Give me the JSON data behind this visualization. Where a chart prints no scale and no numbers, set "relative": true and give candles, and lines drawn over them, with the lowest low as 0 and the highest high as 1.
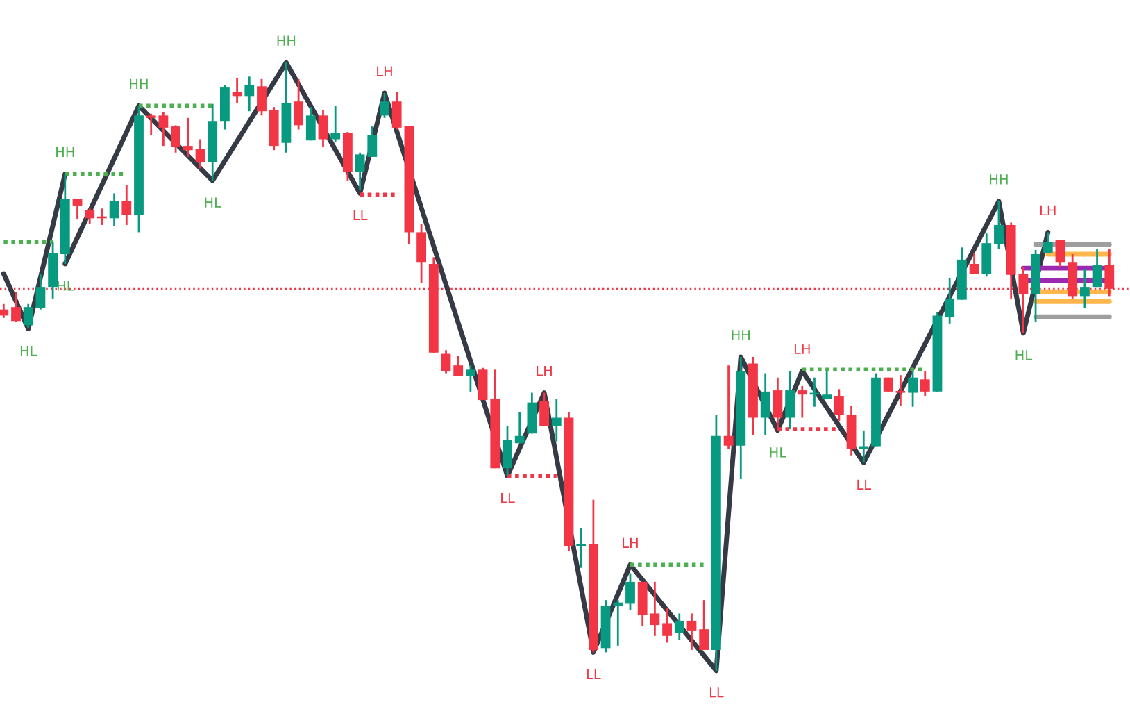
{
  "chart_data": {
    "type": "candlestick",
    "relative": true,
    "categories": [
      null,
      null,
      null,
      null,
      null,
      null,
      null,
      null,
      null,
      null,
      null,
      null,
      null,
      null,
      null,
      null,
      null,
      null,
      null,
      null,
      null,
      null,
      null,
      null,
      null,
      null,
      null,
      null,
      null,
      null,
      null,
      null,
      null,
      null,
      null,
      null,
      null,
      null,
      null,
      null,
      null,
      null,
      null,
      null,
      null,
      null,
      null,
      null,
      null,
      null,
      null,
      null,
      null,
      null,
      null,
      null,
      null,
      null,
      null,
      null,
      null,
      null,
      null,
      null,
      null,
      null,
      null,
      null,
      null,
      null,
      null,
      null,
      null,
      null,
      null,
      null,
      null,
      null,
      null,
      null,
      null,
      null,
      null,
      null,
      null,
      null,
      null,
      null,
      null,
      null,
      null
    ],
    "ohlc": [
      [
        0.594,
        0.603,
        0.58,
        0.584
      ],
      [
        0.598,
        0.623,
        0.573,
        0.575
      ],
      [
        0.568,
        0.603,
        0.564,
        0.598
      ],
      [
        0.596,
        0.653,
        0.594,
        0.63
      ],
      [
        0.63,
        0.705,
        0.612,
        0.687
      ],
      [
        0.685,
        0.817,
        0.669,
        0.776
      ],
      [
        0.776,
        0.776,
        0.742,
        0.765
      ],
      [
        0.758,
        0.76,
        0.735,
        0.744
      ],
      [
        0.747,
        0.76,
        0.733,
        0.744
      ],
      [
        0.744,
        0.785,
        0.731,
        0.772
      ],
      [
        0.772,
        0.799,
        0.733,
        0.749
      ],
      [
        0.749,
        0.929,
        0.721,
        0.913
      ],
      [
        0.913,
        0.916,
        0.881,
        0.909
      ],
      [
        0.913,
        0.918,
        0.863,
        0.893
      ],
      [
        0.895,
        0.897,
        0.852,
        0.861
      ],
      [
        0.863,
        0.909,
        0.845,
        0.856
      ],
      [
        0.858,
        0.874,
        0.826,
        0.836
      ],
      [
        0.836,
        0.932,
        0.806,
        0.904
      ],
      [
        0.904,
        0.963,
        0.89,
        0.959
      ],
      [
        0.952,
        0.975,
        0.934,
        0.945
      ],
      [
        0.945,
        0.977,
        0.92,
        0.963
      ],
      [
        0.961,
        0.973,
        0.913,
        0.92
      ],
      [
        0.922,
        0.927,
        0.856,
        0.863
      ],
      [
        0.868,
        1.0,
        0.852,
        0.934
      ],
      [
        0.936,
        0.973,
        0.89,
        0.897
      ],
      [
        0.872,
        0.927,
        0.872,
        0.913
      ],
      [
        0.913,
        0.922,
        0.861,
        0.874
      ],
      [
        0.874,
        0.929,
        0.87,
        0.884
      ],
      [
        0.884,
        0.886,
        0.806,
        0.82
      ],
      [
        0.82,
        0.852,
        0.79,
        0.849
      ],
      [
        0.845,
        0.895,
        0.845,
        0.881
      ],
      [
        0.913,
        0.95,
        0.909,
        0.936
      ],
      [
        0.936,
        0.952,
        0.89,
        0.893
      ],
      [
        0.895,
        0.895,
        0.701,
        0.721
      ],
      [
        0.721,
        0.735,
        0.637,
        0.671
      ],
      [
        0.669,
        0.68,
        0.523,
        0.523
      ],
      [
        0.521,
        0.527,
        0.489,
        0.493
      ],
      [
        0.502,
        0.518,
        0.484,
        0.484
      ],
      [
        0.484,
        0.502,
        0.459,
        0.495
      ],
      [
        0.495,
        0.498,
        0.445,
        0.445
      ],
      [
        0.447,
        0.495,
        0.333,
        0.333
      ],
      [
        0.333,
        0.402,
        0.32,
        0.379
      ],
      [
        0.374,
        0.425,
        0.374,
        0.386
      ],
      [
        0.39,
        0.457,
        0.39,
        0.441
      ],
      [
        0.443,
        0.457,
        0.402,
        0.402
      ],
      [
        0.402,
        0.447,
        0.377,
        0.416
      ],
      [
        0.416,
        0.425,
        0.196,
        0.205
      ],
      [
        0.205,
        0.235,
        0.169,
        0.208
      ],
      [
        0.208,
        0.281,
        0.03,
        0.034
      ],
      [
        0.037,
        0.116,
        0.03,
        0.107
      ],
      [
        0.107,
        0.116,
        0.041,
        0.112
      ],
      [
        0.11,
        0.16,
        0.1,
        0.146
      ],
      [
        0.146,
        0.146,
        0.073,
        0.091
      ],
      [
        0.094,
        0.146,
        0.057,
        0.075
      ],
      [
        0.078,
        0.103,
        0.046,
        0.057
      ],
      [
        0.062,
        0.094,
        0.05,
        0.082
      ],
      [
        0.082,
        0.094,
        0.034,
        0.066
      ],
      [
        0.068,
        0.116,
        0.034,
        0.034
      ],
      [
        0.034,
        0.42,
        0.0,
        0.386
      ],
      [
        0.386,
        0.502,
        0.365,
        0.37
      ],
      [
        0.37,
        0.516,
        0.315,
        0.493
      ],
      [
        0.505,
        0.516,
        0.388,
        0.416
      ],
      [
        0.416,
        0.489,
        0.388,
        0.459
      ],
      [
        0.461,
        0.482,
        0.395,
        0.416
      ],
      [
        0.416,
        0.493,
        0.397,
        0.461
      ],
      [
        0.461,
        0.468,
        0.416,
        0.454
      ],
      [
        0.454,
        0.482,
        0.434,
        0.457
      ],
      [
        0.447,
        0.493,
        0.447,
        0.454
      ],
      [
        0.452,
        0.463,
        0.411,
        0.42
      ],
      [
        0.42,
        0.436,
        0.354,
        0.365
      ],
      [
        0.365,
        0.395,
        0.342,
        0.368
      ],
      [
        0.368,
        0.489,
        0.368,
        0.482
      ],
      [
        0.482,
        0.482,
        0.459,
        0.459
      ],
      [
        0.459,
        0.486,
        0.436,
        0.457
      ],
      [
        0.457,
        0.493,
        0.434,
        0.482
      ],
      [
        0.479,
        0.493,
        0.452,
        0.459
      ],
      [
        0.459,
        0.589,
        0.459,
        0.584
      ],
      [
        0.582,
        0.646,
        0.571,
        0.612
      ],
      [
        0.61,
        0.696,
        0.61,
        0.676
      ],
      [
        0.669,
        0.687,
        0.653,
        0.653
      ],
      [
        0.653,
        0.719,
        0.648,
        0.703
      ],
      [
        0.701,
        0.772,
        0.694,
        0.733
      ],
      [
        0.733,
        0.737,
        0.612,
        0.651
      ],
      [
        0.653,
        0.664,
        0.555,
        0.619
      ],
      [
        0.619,
        0.692,
        0.573,
        0.685
      ],
      [
        0.687,
        0.721,
        0.687,
        0.705
      ],
      [
        0.708,
        0.708,
        0.664,
        0.671
      ],
      [
        0.671,
        0.685,
        0.612,
        0.616
      ],
      [
        0.616,
        0.66,
        0.596,
        0.63
      ],
      [
        0.63,
        0.694,
        0.63,
        0.667
      ],
      [
        0.667,
        0.694,
        0.616,
        0.628
      ]
    ],
    "colors": [
      "#f23645",
      "#f23645",
      "#089981",
      "#089981",
      "#089981",
      "#089981",
      "#f23645",
      "#f23645",
      "#f23645",
      "#089981",
      "#f23645",
      "#089981",
      "#f23645",
      "#f23645",
      "#f23645",
      "#f23645",
      "#f23645",
      "#089981",
      "#089981",
      "#f23645",
      "#089981",
      "#f23645",
      "#f23645",
      "#089981",
      "#f23645",
      "#089981",
      "#f23645",
      "#089981",
      "#f23645",
      "#089981",
      "#089981",
      "#089981",
      "#f23645",
      "#f23645",
      "#f23645",
      "#f23645",
      "#f23645",
      "#f23645",
      "#089981",
      "#f23645",
      "#f23645",
      "#089981",
      "#089981",
      "#089981",
      "#f23645",
      "#089981",
      "#f23645",
      "#089981",
      "#f23645",
      "#089981",
      "#089981",
      "#089981",
      "#f23645",
      "#f23645",
      "#f23645",
      "#089981",
      "#f23645",
      "#f23645",
      "#089981",
      "#f23645",
      "#089981",
      "#f23645",
      "#089981",
      "#f23645",
      "#089981",
      "#f23645",
      "#089981",
      "#089981",
      "#f23645",
      "#f23645",
      "#089981",
      "#089981",
      "#f23645",
      "#f23645",
      "#089981",
      "#f23645",
      "#089981",
      "#089981",
      "#089981",
      "#f23645",
      "#089981",
      "#089981",
      "#f23645",
      "#f23645",
      "#089981",
      "#089981",
      "#f23645",
      "#f23645",
      "#089981",
      "#089981",
      "#f23645"
    ],
    "series": [
      {
        "type": "line",
        "color": "#363a45",
        "line_style": "solid",
        "values": [
          0.653,
          null,
          0.562,
          null,
          null,
          0.817,
          null,
          null,
          null,
          null,
          null,
          null,
          null,
          null,
          null,
          null,
          null,
          null,
          null,
          null,
          null,
          null,
          null,
          null,
          null,
          null,
          null,
          null,
          null,
          null,
          null,
          null,
          null,
          null,
          null,
          null,
          null,
          null,
          null,
          null,
          null,
          null,
          null,
          null,
          null,
          null,
          null,
          null,
          null,
          null,
          null,
          null,
          null,
          null,
          null,
          null,
          null,
          null,
          null,
          null,
          null,
          null,
          null,
          null,
          null,
          null,
          null,
          null,
          null,
          null,
          null,
          null,
          null,
          null,
          null,
          null,
          null,
          null,
          null,
          null,
          null,
          null,
          null,
          null,
          null,
          null,
          null,
          null,
          null,
          null,
          null
        ]
      },
      {
        "type": "line",
        "color": "#363a45",
        "line_style": "solid",
        "values": [
          null,
          null,
          null,
          null,
          null,
          0.669,
          null,
          null,
          null,
          null,
          null,
          0.929,
          null,
          null,
          null,
          null,
          null,
          0.806,
          null,
          null,
          null,
          null,
          null,
          1.0,
          null,
          null,
          null,
          null,
          null,
          0.785,
          null,
          0.95,
          null,
          null,
          null,
          null,
          null,
          null,
          null,
          null,
          null,
          0.32,
          null,
          null,
          0.457,
          null,
          null,
          null,
          0.03,
          null,
          null,
          0.174,
          null,
          null,
          null,
          null,
          null,
          null,
          0.0,
          null,
          0.516,
          null,
          null,
          0.395,
          null,
          0.493,
          null,
          null,
          null,
          null,
          0.342,
          null,
          null,
          null,
          null,
          null,
          null,
          null,
          null,
          null,
          null,
          0.772,
          null,
          0.555,
          null,
          0.721,
          null,
          null,
          null,
          null,
          null
        ]
      },
      {
        "type": "line",
        "color": "#4caf50",
        "line_style": "dotted",
        "values": [
          0.705,
          0.705,
          0.705,
          0.705,
          0.705,
          null,
          null,
          null,
          null,
          null,
          null,
          null,
          null,
          null,
          null,
          null,
          null,
          null,
          null,
          null,
          null,
          null,
          null,
          null,
          null,
          null,
          null,
          null,
          null,
          null,
          null,
          null,
          null,
          null,
          null,
          null,
          null,
          null,
          null,
          null,
          null,
          null,
          null,
          null,
          null,
          null,
          null,
          null,
          null,
          null,
          null,
          null,
          null,
          null,
          null,
          null,
          null,
          null,
          null,
          null,
          null,
          null,
          null,
          null,
          null,
          null,
          null,
          null,
          null,
          null,
          null,
          null,
          null,
          null,
          null,
          null,
          null,
          null,
          null,
          null,
          null,
          null,
          null,
          null,
          null,
          null,
          null,
          null,
          null,
          null,
          null
        ]
      },
      {
        "type": "line",
        "color": "#4caf50",
        "line_style": "dotted",
        "values": [
          null,
          null,
          null,
          null,
          null,
          0.817,
          0.817,
          0.817,
          0.817,
          0.817,
          0.817,
          null,
          null,
          null,
          null,
          null,
          null,
          null,
          null,
          null,
          null,
          null,
          null,
          null,
          null,
          null,
          null,
          null,
          null,
          null,
          null,
          null,
          null,
          null,
          null,
          null,
          null,
          null,
          null,
          null,
          null,
          null,
          null,
          null,
          null,
          null,
          null,
          null,
          null,
          null,
          null,
          null,
          null,
          null,
          null,
          null,
          null,
          null,
          null,
          null,
          null,
          null,
          null,
          null,
          null,
          null,
          null,
          null,
          null,
          null,
          null,
          null,
          null,
          null,
          null,
          null,
          null,
          null,
          null,
          null,
          null,
          null,
          null,
          null,
          null,
          null,
          null,
          null,
          null,
          null,
          null
        ]
      },
      {
        "type": "line",
        "color": "#4caf50",
        "line_style": "dotted",
        "values": [
          null,
          null,
          null,
          null,
          null,
          null,
          null,
          null,
          null,
          null,
          null,
          0.929,
          0.929,
          0.929,
          0.929,
          0.929,
          0.929,
          0.929,
          null,
          null,
          null,
          null,
          null,
          null,
          null,
          null,
          null,
          null,
          null,
          null,
          null,
          null,
          null,
          null,
          null,
          null,
          null,
          null,
          null,
          null,
          null,
          null,
          null,
          null,
          null,
          null,
          null,
          null,
          null,
          null,
          null,
          null,
          null,
          null,
          null,
          null,
          null,
          null,
          null,
          null,
          null,
          null,
          null,
          null,
          null,
          null,
          null,
          null,
          null,
          null,
          null,
          null,
          null,
          null,
          null,
          null,
          null,
          null,
          null,
          null,
          null,
          null,
          null,
          null,
          null,
          null,
          null,
          null,
          null,
          null,
          null
        ]
      },
      {
        "type": "line",
        "color": "#f23645",
        "line_style": "dotted",
        "values": [
          null,
          null,
          null,
          null,
          null,
          null,
          null,
          null,
          null,
          null,
          null,
          null,
          null,
          null,
          null,
          null,
          null,
          null,
          null,
          null,
          null,
          null,
          null,
          null,
          null,
          null,
          null,
          null,
          null,
          0.783,
          0.783,
          0.783,
          0.783,
          null,
          null,
          null,
          null,
          null,
          null,
          null,
          null,
          null,
          null,
          null,
          null,
          null,
          null,
          null,
          null,
          null,
          null,
          null,
          null,
          null,
          null,
          null,
          null,
          null,
          null,
          null,
          null,
          null,
          null,
          null,
          null,
          null,
          null,
          null,
          null,
          null,
          null,
          null,
          null,
          null,
          null,
          null,
          null,
          null,
          null,
          null,
          null,
          null,
          null,
          null,
          null,
          null,
          null,
          null,
          null,
          null,
          null
        ]
      },
      {
        "type": "line",
        "color": "#f23645",
        "line_style": "dotted",
        "values": [
          null,
          null,
          null,
          null,
          null,
          null,
          null,
          null,
          null,
          null,
          null,
          null,
          null,
          null,
          null,
          null,
          null,
          null,
          null,
          null,
          null,
          null,
          null,
          null,
          null,
          null,
          null,
          null,
          null,
          null,
          null,
          null,
          null,
          null,
          null,
          null,
          null,
          null,
          null,
          null,
          null,
          0.32,
          0.32,
          0.32,
          0.32,
          0.32,
          null,
          null,
          null,
          null,
          null,
          null,
          null,
          null,
          null,
          null,
          null,
          null,
          null,
          null,
          null,
          null,
          null,
          null,
          null,
          null,
          null,
          null,
          null,
          null,
          null,
          null,
          null,
          null,
          null,
          null,
          null,
          null,
          null,
          null,
          null,
          null,
          null,
          null,
          null,
          null,
          null,
          null,
          null,
          null,
          null
        ]
      },
      {
        "type": "line",
        "color": "#4caf50",
        "line_style": "dotted",
        "values": [
          null,
          null,
          null,
          null,
          null,
          null,
          null,
          null,
          null,
          null,
          null,
          null,
          null,
          null,
          null,
          null,
          null,
          null,
          null,
          null,
          null,
          null,
          null,
          null,
          null,
          null,
          null,
          null,
          null,
          null,
          null,
          null,
          null,
          null,
          null,
          null,
          null,
          null,
          null,
          null,
          null,
          null,
          null,
          null,
          null,
          null,
          null,
          null,
          null,
          null,
          null,
          0.174,
          0.174,
          0.174,
          0.174,
          0.174,
          0.174,
          0.174,
          null,
          null,
          null,
          null,
          null,
          null,
          null,
          null,
          null,
          null,
          null,
          null,
          null,
          null,
          null,
          null,
          null,
          null,
          null,
          null,
          null,
          null,
          null,
          null,
          null,
          null,
          null,
          null,
          null,
          null,
          null,
          null,
          null
        ]
      },
      {
        "type": "line",
        "color": "#f23645",
        "line_style": "dotted",
        "values": [
          null,
          null,
          null,
          null,
          null,
          null,
          null,
          null,
          null,
          null,
          null,
          null,
          null,
          null,
          null,
          null,
          null,
          null,
          null,
          null,
          null,
          null,
          null,
          null,
          null,
          null,
          null,
          null,
          null,
          null,
          null,
          null,
          null,
          null,
          null,
          null,
          null,
          null,
          null,
          null,
          null,
          null,
          null,
          null,
          null,
          null,
          null,
          null,
          null,
          null,
          null,
          null,
          null,
          null,
          null,
          null,
          null,
          null,
          null,
          null,
          null,
          null,
          null,
          0.397,
          0.397,
          0.397,
          0.397,
          0.397,
          0.397,
          null,
          null,
          null,
          null,
          null,
          null,
          null,
          null,
          null,
          null,
          null,
          null,
          null,
          null,
          null,
          null,
          null,
          null,
          null,
          null,
          null,
          null
        ]
      },
      {
        "type": "line",
        "color": "#4caf50",
        "line_style": "dotted",
        "values": [
          null,
          null,
          null,
          null,
          null,
          null,
          null,
          null,
          null,
          null,
          null,
          null,
          null,
          null,
          null,
          null,
          null,
          null,
          null,
          null,
          null,
          null,
          null,
          null,
          null,
          null,
          null,
          null,
          null,
          null,
          null,
          null,
          null,
          null,
          null,
          null,
          null,
          null,
          null,
          null,
          null,
          null,
          null,
          null,
          null,
          null,
          null,
          null,
          null,
          null,
          null,
          null,
          null,
          null,
          null,
          null,
          null,
          null,
          null,
          null,
          null,
          null,
          null,
          null,
          null,
          0.495,
          0.495,
          0.495,
          0.495,
          0.495,
          0.495,
          0.495,
          0.495,
          0.495,
          0.495,
          0.495,
          null,
          null,
          null,
          null,
          null,
          null,
          null,
          null,
          null,
          null,
          null,
          null,
          null,
          null,
          null
        ]
      },
      {
        "type": "line",
        "color": "#9e9e9e",
        "line_style": "solid",
        "values": [
          null,
          null,
          null,
          null,
          null,
          null,
          null,
          null,
          null,
          null,
          null,
          null,
          null,
          null,
          null,
          null,
          null,
          null,
          null,
          null,
          null,
          null,
          null,
          null,
          null,
          null,
          null,
          null,
          null,
          null,
          null,
          null,
          null,
          null,
          null,
          null,
          null,
          null,
          null,
          null,
          null,
          null,
          null,
          null,
          null,
          null,
          null,
          null,
          null,
          null,
          null,
          null,
          null,
          null,
          null,
          null,
          null,
          null,
          null,
          null,
          null,
          null,
          null,
          null,
          null,
          null,
          null,
          null,
          null,
          null,
          null,
          null,
          null,
          null,
          null,
          null,
          null,
          null,
          null,
          null,
          null,
          null,
          null,
          null,
          0.701,
          0.701,
          0.701,
          0.701,
          0.701,
          0.701,
          0.701
        ]
      },
      {
        "type": "line",
        "color": "#ffb74d",
        "line_style": "solid",
        "values": [
          null,
          null,
          null,
          null,
          null,
          null,
          null,
          null,
          null,
          null,
          null,
          null,
          null,
          null,
          null,
          null,
          null,
          null,
          null,
          null,
          null,
          null,
          null,
          null,
          null,
          null,
          null,
          null,
          null,
          null,
          null,
          null,
          null,
          null,
          null,
          null,
          null,
          null,
          null,
          null,
          null,
          null,
          null,
          null,
          null,
          null,
          null,
          null,
          null,
          null,
          null,
          null,
          null,
          null,
          null,
          null,
          null,
          null,
          null,
          null,
          null,
          null,
          null,
          null,
          null,
          null,
          null,
          null,
          null,
          null,
          null,
          null,
          null,
          null,
          null,
          null,
          null,
          null,
          null,
          null,
          null,
          null,
          null,
          null,
          null,
          0.685,
          0.685,
          0.685,
          0.685,
          0.685,
          0.685
        ]
      },
      {
        "type": "line",
        "color": "#9c27b0",
        "line_style": "solid",
        "values": [
          null,
          null,
          null,
          null,
          null,
          null,
          null,
          null,
          null,
          null,
          null,
          null,
          null,
          null,
          null,
          null,
          null,
          null,
          null,
          null,
          null,
          null,
          null,
          null,
          null,
          null,
          null,
          null,
          null,
          null,
          null,
          null,
          null,
          null,
          null,
          null,
          null,
          null,
          null,
          null,
          null,
          null,
          null,
          null,
          null,
          null,
          null,
          null,
          null,
          null,
          null,
          null,
          null,
          null,
          null,
          null,
          null,
          null,
          null,
          null,
          null,
          null,
          null,
          null,
          null,
          null,
          null,
          null,
          null,
          null,
          null,
          null,
          null,
          null,
          null,
          null,
          null,
          null,
          null,
          null,
          null,
          null,
          null,
          0.662,
          0.662,
          0.662,
          0.662,
          0.662,
          0.662,
          0.662,
          0.662
        ]
      },
      {
        "type": "line",
        "color": "#9c27b0",
        "line_style": "solid",
        "values": [
          null,
          null,
          null,
          null,
          null,
          null,
          null,
          null,
          null,
          null,
          null,
          null,
          null,
          null,
          null,
          null,
          null,
          null,
          null,
          null,
          null,
          null,
          null,
          null,
          null,
          null,
          null,
          null,
          null,
          null,
          null,
          null,
          null,
          null,
          null,
          null,
          null,
          null,
          null,
          null,
          null,
          null,
          null,
          null,
          null,
          null,
          null,
          null,
          null,
          null,
          null,
          null,
          null,
          null,
          null,
          null,
          null,
          null,
          null,
          null,
          null,
          null,
          null,
          null,
          null,
          null,
          null,
          null,
          null,
          null,
          null,
          null,
          null,
          null,
          null,
          null,
          null,
          null,
          null,
          null,
          null,
          null,
          null,
          0.642,
          0.642,
          0.642,
          0.642,
          0.642,
          0.642,
          0.642,
          0.642
        ]
      },
      {
        "type": "line",
        "color": "#ffb74d",
        "line_style": "solid",
        "values": [
          null,
          null,
          null,
          null,
          null,
          null,
          null,
          null,
          null,
          null,
          null,
          null,
          null,
          null,
          null,
          null,
          null,
          null,
          null,
          null,
          null,
          null,
          null,
          null,
          null,
          null,
          null,
          null,
          null,
          null,
          null,
          null,
          null,
          null,
          null,
          null,
          null,
          null,
          null,
          null,
          null,
          null,
          null,
          null,
          null,
          null,
          null,
          null,
          null,
          null,
          null,
          null,
          null,
          null,
          null,
          null,
          null,
          null,
          null,
          null,
          null,
          null,
          null,
          null,
          null,
          null,
          null,
          null,
          null,
          null,
          null,
          null,
          null,
          null,
          null,
          null,
          null,
          null,
          null,
          null,
          null,
          null,
          null,
          null,
          0.623,
          0.623,
          0.623,
          0.623,
          0.623,
          0.623,
          0.623
        ]
      },
      {
        "type": "line",
        "color": "#ffb74d",
        "line_style": "solid",
        "values": [
          null,
          null,
          null,
          null,
          null,
          null,
          null,
          null,
          null,
          null,
          null,
          null,
          null,
          null,
          null,
          null,
          null,
          null,
          null,
          null,
          null,
          null,
          null,
          null,
          null,
          null,
          null,
          null,
          null,
          null,
          null,
          null,
          null,
          null,
          null,
          null,
          null,
          null,
          null,
          null,
          null,
          null,
          null,
          null,
          null,
          null,
          null,
          null,
          null,
          null,
          null,
          null,
          null,
          null,
          null,
          null,
          null,
          null,
          null,
          null,
          null,
          null,
          null,
          null,
          null,
          null,
          null,
          null,
          null,
          null,
          null,
          null,
          null,
          null,
          null,
          null,
          null,
          null,
          null,
          null,
          null,
          null,
          null,
          null,
          0.607,
          0.607,
          0.607,
          0.607,
          0.607,
          0.607,
          0.607
        ]
      },
      {
        "type": "line",
        "color": "#9e9e9e",
        "line_style": "solid",
        "values": [
          null,
          null,
          null,
          null,
          null,
          null,
          null,
          null,
          null,
          null,
          null,
          null,
          null,
          null,
          null,
          null,
          null,
          null,
          null,
          null,
          null,
          null,
          null,
          null,
          null,
          null,
          null,
          null,
          null,
          null,
          null,
          null,
          null,
          null,
          null,
          null,
          null,
          null,
          null,
          null,
          null,
          null,
          null,
          null,
          null,
          null,
          null,
          null,
          null,
          null,
          null,
          null,
          null,
          null,
          null,
          null,
          null,
          null,
          null,
          null,
          null,
          null,
          null,
          null,
          null,
          null,
          null,
          null,
          null,
          null,
          null,
          null,
          null,
          null,
          null,
          null,
          null,
          null,
          null,
          null,
          null,
          null,
          null,
          null,
          0.582,
          0.582,
          0.582,
          0.582,
          0.582,
          0.582,
          0.582
        ]
      }
    ],
    "ref_lines": [
      {
        "axis": "y",
        "value": 0.628,
        "color": "#f23645",
        "line_style": "dotted"
      }
    ],
    "annotations": [
      "HL",
      "HH",
      "HL",
      "HH",
      "HL",
      "HH",
      "LL",
      "LH",
      "LL",
      "LH",
      "LL",
      "LH",
      "LL",
      "HH",
      "HL",
      "LH",
      "LL",
      "HH",
      "HL",
      "LH"
    ]
  }
}
